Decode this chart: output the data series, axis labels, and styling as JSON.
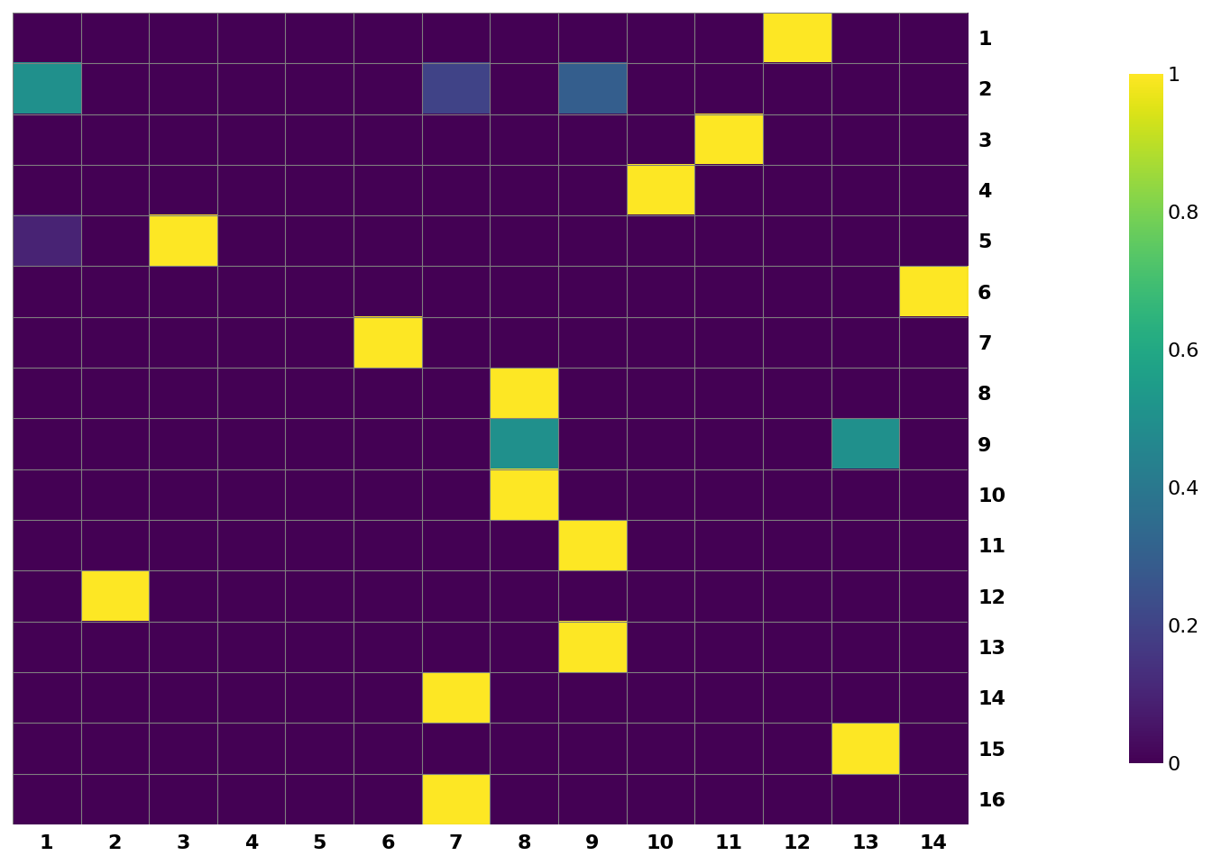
{
  "matrix": [
    [
      0,
      0,
      0,
      0,
      0,
      0,
      0,
      0,
      0,
      0,
      0,
      1.0,
      0,
      0
    ],
    [
      0.5,
      0,
      0,
      0,
      0,
      0,
      0.2,
      0,
      0.3,
      0,
      0,
      0,
      0,
      0
    ],
    [
      0,
      0,
      0,
      0,
      0,
      0,
      0,
      0,
      0,
      0,
      1.0,
      0,
      0,
      0
    ],
    [
      0,
      0,
      0,
      0,
      0,
      0,
      0,
      0,
      0,
      1.0,
      0,
      0,
      0,
      0
    ],
    [
      0.1,
      0,
      1.0,
      0,
      0,
      0,
      0,
      0,
      0,
      0,
      0,
      0,
      0,
      0
    ],
    [
      0,
      0,
      0,
      0,
      0,
      0,
      0,
      0,
      0,
      0,
      0,
      0,
      0,
      1.0
    ],
    [
      0,
      0,
      0,
      0,
      0,
      1.0,
      0,
      0,
      0,
      0,
      0,
      0,
      0,
      0
    ],
    [
      0,
      0,
      0,
      0,
      0,
      0,
      0,
      1.0,
      0,
      0,
      0,
      0,
      0,
      0
    ],
    [
      0,
      0,
      0,
      0,
      0,
      0,
      0,
      0.5,
      0,
      0,
      0,
      0,
      0.5,
      0
    ],
    [
      0,
      0,
      0,
      0,
      0,
      0,
      0,
      1.0,
      0,
      0,
      0,
      0,
      0,
      0
    ],
    [
      0,
      0,
      0,
      0,
      0,
      0,
      0,
      0,
      1.0,
      0,
      0,
      0,
      0,
      0
    ],
    [
      0,
      1.0,
      0,
      0,
      0,
      0,
      0,
      0,
      0,
      0,
      0,
      0,
      0,
      0
    ],
    [
      0,
      0,
      0,
      0,
      0,
      0,
      0,
      0,
      1.0,
      0,
      0,
      0,
      0,
      0
    ],
    [
      0,
      0,
      0,
      0,
      0,
      0,
      1.0,
      0,
      0,
      0,
      0,
      0,
      0,
      0
    ],
    [
      0,
      0,
      0,
      0,
      0,
      0,
      0,
      0,
      0,
      0,
      0,
      0,
      1.0,
      0
    ],
    [
      0,
      0,
      0,
      0,
      0,
      0,
      1.0,
      0,
      0,
      0,
      0,
      0,
      0,
      0
    ]
  ],
  "row_labels": [
    "1",
    "2",
    "3",
    "4",
    "5",
    "6",
    "7",
    "8",
    "9",
    "10",
    "11",
    "12",
    "13",
    "14",
    "15",
    "16"
  ],
  "col_labels": [
    "1",
    "2",
    "3",
    "4",
    "5",
    "6",
    "7",
    "8",
    "9",
    "10",
    "11",
    "12",
    "13",
    "14"
  ],
  "cmap": "viridis",
  "vmin": 0,
  "vmax": 1,
  "colorbar_ticks": [
    0,
    0.2,
    0.4,
    0.6,
    0.8,
    1.0
  ],
  "colorbar_ticklabels": [
    "0",
    "0.2",
    "0.4",
    "0.6",
    "0.8",
    "1"
  ],
  "grid_color": "#7f7f7f",
  "figsize": [
    13.44,
    9.6
  ],
  "dpi": 100
}
